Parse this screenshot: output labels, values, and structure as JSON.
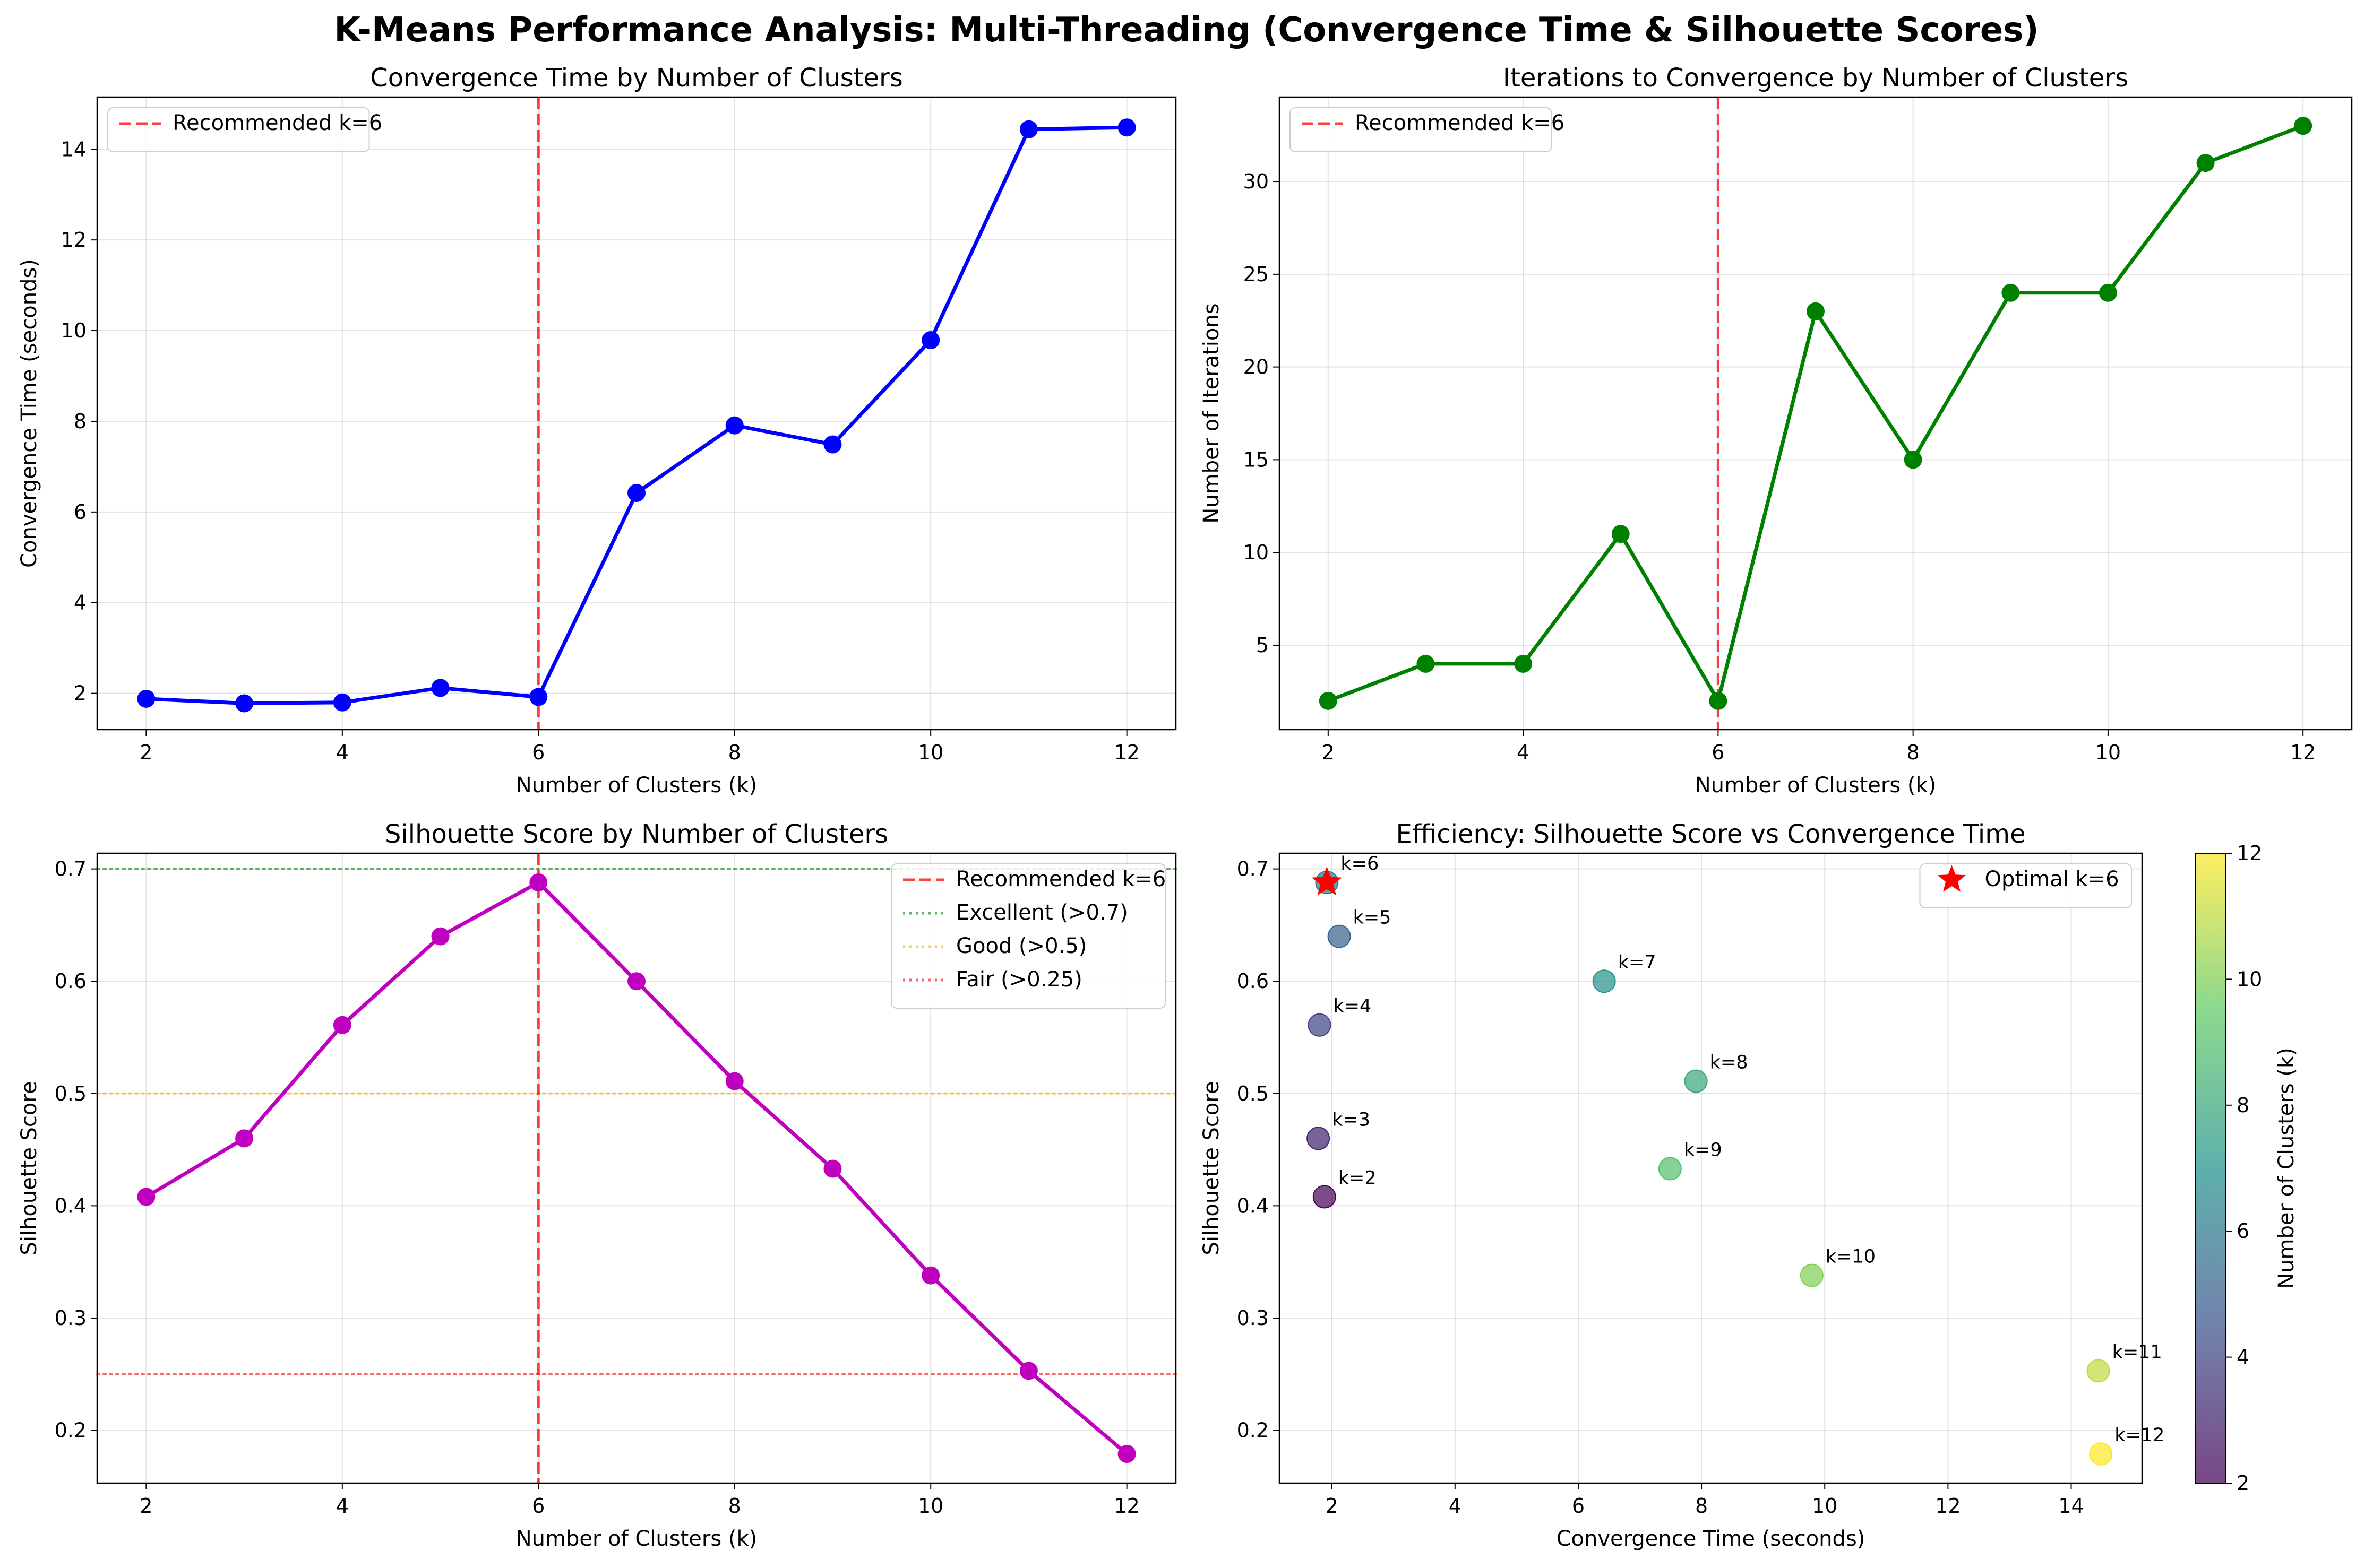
{
  "figure": {
    "title": "K-Means Performance Analysis: Multi-Threading (Convergence Time & Silhouette Scores)"
  },
  "chart_data": [
    {
      "type": "line",
      "title": "Convergence Time by Number of Clusters",
      "xlabel": "Number of Clusters (k)",
      "ylabel": "Convergence Time (seconds)",
      "xlim": [
        1.5,
        12.5
      ],
      "ylim": [
        1.2,
        15.15
      ],
      "xticks": [
        2,
        4,
        6,
        8,
        10,
        12
      ],
      "yticks": [
        2,
        4,
        6,
        8,
        10,
        12,
        14
      ],
      "grid": true,
      "legend_position": "upper left",
      "series": [
        {
          "color": "#0000ff",
          "x": [
            2,
            3,
            4,
            5,
            6,
            7,
            8,
            9,
            10,
            11,
            12
          ],
          "y": [
            1.88,
            1.78,
            1.8,
            2.12,
            1.92,
            6.42,
            7.91,
            7.49,
            9.79,
            14.44,
            14.48
          ]
        }
      ],
      "vlines": [
        {
          "x": 6,
          "label": "Recommended k=6",
          "color": "#ff0000",
          "style": "dashed"
        }
      ]
    },
    {
      "type": "line",
      "title": "Iterations to Convergence by Number of Clusters",
      "xlabel": "Number of Clusters (k)",
      "ylabel": "Number of Iterations",
      "xlim": [
        1.5,
        12.5
      ],
      "ylim": [
        0.45,
        34.55
      ],
      "xticks": [
        2,
        4,
        6,
        8,
        10,
        12
      ],
      "yticks": [
        5,
        10,
        15,
        20,
        25,
        30
      ],
      "grid": true,
      "legend_position": "upper left",
      "series": [
        {
          "color": "#008000",
          "x": [
            2,
            3,
            4,
            5,
            6,
            7,
            8,
            9,
            10,
            11,
            12
          ],
          "y": [
            2,
            4,
            4,
            11,
            2,
            23,
            15,
            24,
            24,
            31,
            33
          ]
        }
      ],
      "vlines": [
        {
          "x": 6,
          "label": "Recommended k=6",
          "color": "#ff0000",
          "style": "dashed"
        }
      ]
    },
    {
      "type": "line",
      "title": "Silhouette Score by Number of Clusters",
      "xlabel": "Number of Clusters (k)",
      "ylabel": "Silhouette Score",
      "xlim": [
        1.5,
        12.5
      ],
      "ylim": [
        0.153,
        0.714
      ],
      "xticks": [
        2,
        4,
        6,
        8,
        10,
        12
      ],
      "yticks": [
        0.2,
        0.3,
        0.4,
        0.5,
        0.6,
        0.7
      ],
      "grid": true,
      "legend_position": "upper right",
      "series": [
        {
          "color": "#bf00bf",
          "x": [
            2,
            3,
            4,
            5,
            6,
            7,
            8,
            9,
            10,
            11,
            12
          ],
          "y": [
            0.408,
            0.46,
            0.561,
            0.64,
            0.688,
            0.6,
            0.511,
            0.433,
            0.338,
            0.253,
            0.179
          ]
        }
      ],
      "vlines": [
        {
          "x": 6,
          "label": "Recommended k=6",
          "color": "#ff0000",
          "style": "dashed"
        }
      ],
      "hlines": [
        {
          "y": 0.7,
          "label": "Excellent (>0.7)",
          "color": "#008000",
          "style": "dotted"
        },
        {
          "y": 0.5,
          "label": "Good (>0.5)",
          "color": "#ffa500",
          "style": "dotted"
        },
        {
          "y": 0.25,
          "label": "Fair (>0.25)",
          "color": "#ff0000",
          "style": "dotted"
        }
      ]
    },
    {
      "type": "scatter",
      "title": "Efficiency: Silhouette Score vs Convergence Time",
      "xlabel": "Convergence Time (seconds)",
      "ylabel": "Silhouette Score",
      "xlim": [
        1.15,
        15.15
      ],
      "ylim": [
        0.153,
        0.714
      ],
      "xticks": [
        2,
        4,
        6,
        8,
        10,
        12,
        14
      ],
      "yticks": [
        0.2,
        0.3,
        0.4,
        0.5,
        0.6,
        0.7
      ],
      "grid": true,
      "legend_position": "upper right",
      "colormap": "viridis",
      "color_values": [
        2,
        3,
        4,
        5,
        6,
        7,
        8,
        9,
        10,
        11,
        12
      ],
      "point_labels": [
        "k=2",
        "k=3",
        "k=4",
        "k=5",
        "k=6",
        "k=7",
        "k=8",
        "k=9",
        "k=10",
        "k=11",
        "k=12"
      ],
      "x": [
        1.88,
        1.78,
        1.8,
        2.12,
        1.92,
        6.42,
        7.91,
        7.49,
        9.79,
        14.44,
        14.48
      ],
      "y": [
        0.408,
        0.46,
        0.561,
        0.64,
        0.688,
        0.6,
        0.511,
        0.433,
        0.338,
        0.253,
        0.179
      ],
      "highlight": {
        "x": 1.92,
        "y": 0.688,
        "label": "Optimal k=6",
        "color": "#ff0000",
        "marker": "star"
      },
      "colorbar": {
        "label": "Number of Clusters (k)",
        "range": [
          2,
          12
        ],
        "ticks": [
          2,
          4,
          6,
          8,
          10,
          12
        ]
      }
    }
  ]
}
